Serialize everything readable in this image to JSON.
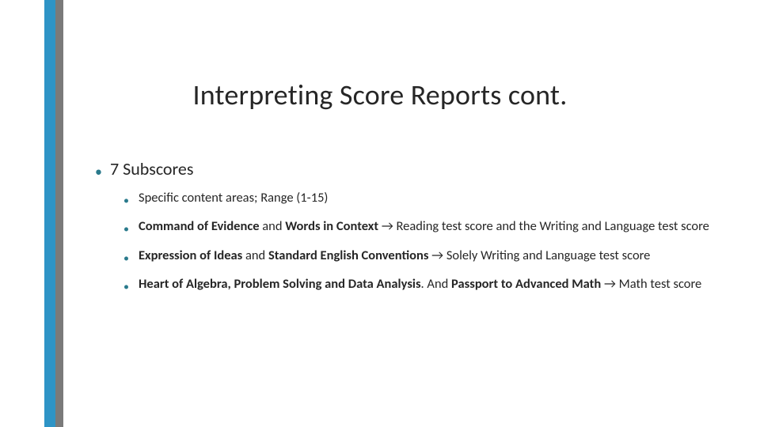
{
  "accent": {
    "blue": "#2e94c6",
    "gray": "#7a7a7a",
    "bullet_color": "#2a7a8c"
  },
  "title": "Interpreting Score Reports cont.",
  "main_bullet": "7 Subscores",
  "arrow": "→",
  "sub": {
    "a": "Specific content areas; Range (1-15)",
    "b_bold1": "Command of Evidence",
    "b_mid1": " and ",
    "b_bold2": "Words in Context",
    "b_tail": " Reading test score and the Writing and Language test score",
    "c_bold1": "Expression of Ideas",
    "c_mid1": " and ",
    "c_bold2": "Standard English Conventions",
    "c_tail": " Solely Writing and Language test score",
    "d_bold1": "Heart of Algebra, Problem Solving and Data Analysis",
    "d_mid1": ". And ",
    "d_bold2": "Passport to Advanced Math",
    "d_tail": " Math test score"
  }
}
